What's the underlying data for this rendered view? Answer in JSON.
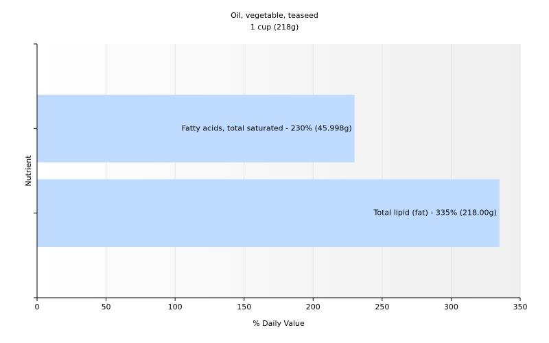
{
  "chart_data": {
    "type": "hbar",
    "title": "Oil, vegetable, teaseed",
    "subtitle": "1 cup (218g)",
    "x_label": "% Daily Value",
    "y_label": "Nutrient",
    "values": [
      230,
      335
    ],
    "value_labels": [
      "Fatty acids, total saturated - 230% (45.998g)",
      "Total lipid (fat) - 335% (218.00g)"
    ],
    "color": "#bfdbff",
    "xlim": [
      0,
      350
    ],
    "xticks": [
      0,
      50,
      100,
      150,
      200,
      250,
      300,
      350
    ],
    "grid": true
  }
}
